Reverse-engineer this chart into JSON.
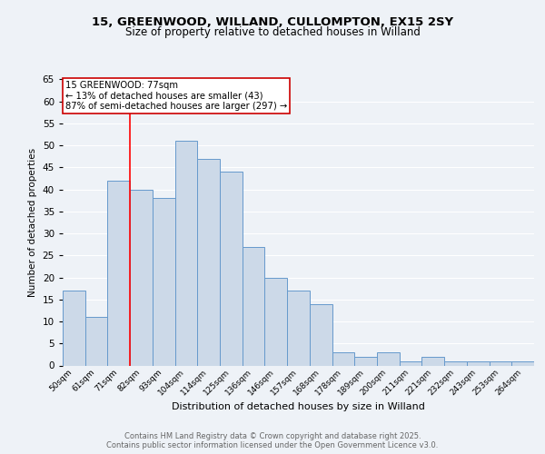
{
  "title_line1": "15, GREENWOOD, WILLAND, CULLOMPTON, EX15 2SY",
  "title_line2": "Size of property relative to detached houses in Willand",
  "xlabel": "Distribution of detached houses by size in Willand",
  "ylabel": "Number of detached properties",
  "bar_labels": [
    "50sqm",
    "61sqm",
    "71sqm",
    "82sqm",
    "93sqm",
    "104sqm",
    "114sqm",
    "125sqm",
    "136sqm",
    "146sqm",
    "157sqm",
    "168sqm",
    "178sqm",
    "189sqm",
    "200sqm",
    "211sqm",
    "221sqm",
    "232sqm",
    "243sqm",
    "253sqm",
    "264sqm"
  ],
  "bar_values": [
    17,
    11,
    42,
    40,
    38,
    51,
    47,
    44,
    27,
    20,
    17,
    14,
    3,
    2,
    3,
    1,
    2,
    1,
    1,
    1,
    1
  ],
  "bar_color": "#ccd9e8",
  "bar_edgecolor": "#6699cc",
  "red_line_index": 2,
  "red_line_color": "#ff0000",
  "annotation_text": "15 GREENWOOD: 77sqm\n← 13% of detached houses are smaller (43)\n87% of semi-detached houses are larger (297) →",
  "annotation_box_facecolor": "#ffffff",
  "annotation_box_edgecolor": "#cc0000",
  "ylim": [
    0,
    65
  ],
  "yticks": [
    0,
    5,
    10,
    15,
    20,
    25,
    30,
    35,
    40,
    45,
    50,
    55,
    60,
    65
  ],
  "footer_text": "Contains HM Land Registry data © Crown copyright and database right 2025.\nContains public sector information licensed under the Open Government Licence v3.0.",
  "background_color": "#eef2f7",
  "grid_color": "#ffffff",
  "title_fontsize": 9.5,
  "subtitle_fontsize": 8.5
}
